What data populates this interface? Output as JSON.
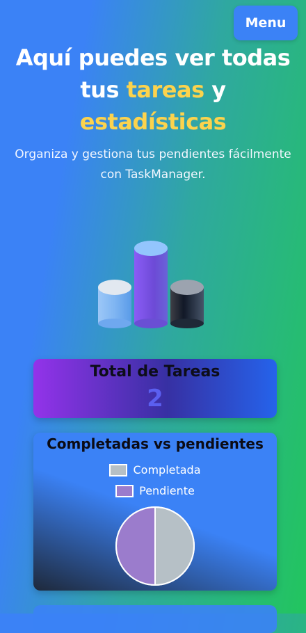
{
  "header": {
    "menu_label": "Menu"
  },
  "hero": {
    "title_line1": "Aquí puedes ver todas",
    "title_line2_a": "tus ",
    "title_line2_b": "tareas",
    "title_line2_c": " y",
    "title_line3": "estadísticas",
    "subtitle": "Organiza y gestiona tus pendientes fácilmente con TaskManager.",
    "highlight_color": "#fcd34d"
  },
  "stats": {
    "total_title": "Total de Tareas",
    "total_value": "2"
  },
  "chart_data": {
    "type": "pie",
    "title": "Completadas vs pendientes",
    "categories": [
      "Completada",
      "Pendiente"
    ],
    "values": [
      1,
      1
    ],
    "colors": [
      "#b6c0c6",
      "#9b7ccc"
    ],
    "legend": "top"
  }
}
